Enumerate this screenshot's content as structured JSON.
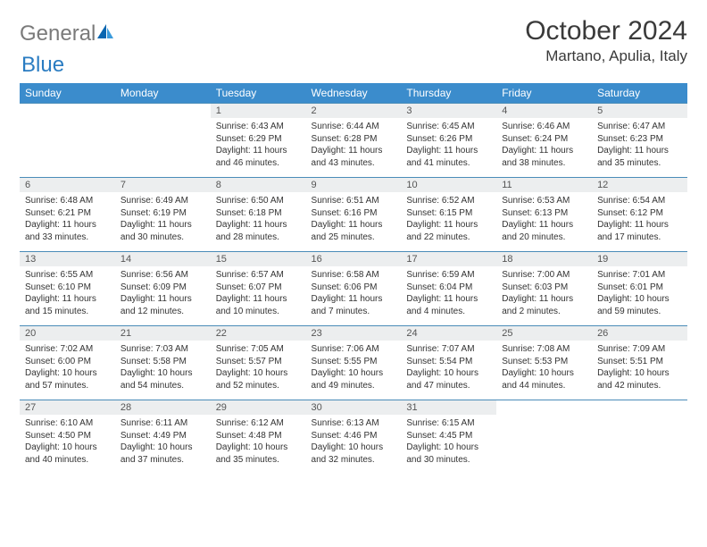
{
  "logo": {
    "text1": "General",
    "text2": "Blue"
  },
  "title": "October 2024",
  "location": "Martano, Apulia, Italy",
  "colors": {
    "header_bg": "#3b8ccc",
    "header_text": "#ffffff",
    "daynum_bg": "#eceeef",
    "row_border": "#4a8cb8",
    "text": "#333333",
    "logo_gray": "#7a7a7a",
    "logo_blue": "#2a7cc2"
  },
  "dayNames": [
    "Sunday",
    "Monday",
    "Tuesday",
    "Wednesday",
    "Thursday",
    "Friday",
    "Saturday"
  ],
  "weeks": [
    [
      {
        "n": "",
        "sr": "",
        "ss": "",
        "dl": ""
      },
      {
        "n": "",
        "sr": "",
        "ss": "",
        "dl": ""
      },
      {
        "n": "1",
        "sr": "Sunrise: 6:43 AM",
        "ss": "Sunset: 6:29 PM",
        "dl": "Daylight: 11 hours and 46 minutes."
      },
      {
        "n": "2",
        "sr": "Sunrise: 6:44 AM",
        "ss": "Sunset: 6:28 PM",
        "dl": "Daylight: 11 hours and 43 minutes."
      },
      {
        "n": "3",
        "sr": "Sunrise: 6:45 AM",
        "ss": "Sunset: 6:26 PM",
        "dl": "Daylight: 11 hours and 41 minutes."
      },
      {
        "n": "4",
        "sr": "Sunrise: 6:46 AM",
        "ss": "Sunset: 6:24 PM",
        "dl": "Daylight: 11 hours and 38 minutes."
      },
      {
        "n": "5",
        "sr": "Sunrise: 6:47 AM",
        "ss": "Sunset: 6:23 PM",
        "dl": "Daylight: 11 hours and 35 minutes."
      }
    ],
    [
      {
        "n": "6",
        "sr": "Sunrise: 6:48 AM",
        "ss": "Sunset: 6:21 PM",
        "dl": "Daylight: 11 hours and 33 minutes."
      },
      {
        "n": "7",
        "sr": "Sunrise: 6:49 AM",
        "ss": "Sunset: 6:19 PM",
        "dl": "Daylight: 11 hours and 30 minutes."
      },
      {
        "n": "8",
        "sr": "Sunrise: 6:50 AM",
        "ss": "Sunset: 6:18 PM",
        "dl": "Daylight: 11 hours and 28 minutes."
      },
      {
        "n": "9",
        "sr": "Sunrise: 6:51 AM",
        "ss": "Sunset: 6:16 PM",
        "dl": "Daylight: 11 hours and 25 minutes."
      },
      {
        "n": "10",
        "sr": "Sunrise: 6:52 AM",
        "ss": "Sunset: 6:15 PM",
        "dl": "Daylight: 11 hours and 22 minutes."
      },
      {
        "n": "11",
        "sr": "Sunrise: 6:53 AM",
        "ss": "Sunset: 6:13 PM",
        "dl": "Daylight: 11 hours and 20 minutes."
      },
      {
        "n": "12",
        "sr": "Sunrise: 6:54 AM",
        "ss": "Sunset: 6:12 PM",
        "dl": "Daylight: 11 hours and 17 minutes."
      }
    ],
    [
      {
        "n": "13",
        "sr": "Sunrise: 6:55 AM",
        "ss": "Sunset: 6:10 PM",
        "dl": "Daylight: 11 hours and 15 minutes."
      },
      {
        "n": "14",
        "sr": "Sunrise: 6:56 AM",
        "ss": "Sunset: 6:09 PM",
        "dl": "Daylight: 11 hours and 12 minutes."
      },
      {
        "n": "15",
        "sr": "Sunrise: 6:57 AM",
        "ss": "Sunset: 6:07 PM",
        "dl": "Daylight: 11 hours and 10 minutes."
      },
      {
        "n": "16",
        "sr": "Sunrise: 6:58 AM",
        "ss": "Sunset: 6:06 PM",
        "dl": "Daylight: 11 hours and 7 minutes."
      },
      {
        "n": "17",
        "sr": "Sunrise: 6:59 AM",
        "ss": "Sunset: 6:04 PM",
        "dl": "Daylight: 11 hours and 4 minutes."
      },
      {
        "n": "18",
        "sr": "Sunrise: 7:00 AM",
        "ss": "Sunset: 6:03 PM",
        "dl": "Daylight: 11 hours and 2 minutes."
      },
      {
        "n": "19",
        "sr": "Sunrise: 7:01 AM",
        "ss": "Sunset: 6:01 PM",
        "dl": "Daylight: 10 hours and 59 minutes."
      }
    ],
    [
      {
        "n": "20",
        "sr": "Sunrise: 7:02 AM",
        "ss": "Sunset: 6:00 PM",
        "dl": "Daylight: 10 hours and 57 minutes."
      },
      {
        "n": "21",
        "sr": "Sunrise: 7:03 AM",
        "ss": "Sunset: 5:58 PM",
        "dl": "Daylight: 10 hours and 54 minutes."
      },
      {
        "n": "22",
        "sr": "Sunrise: 7:05 AM",
        "ss": "Sunset: 5:57 PM",
        "dl": "Daylight: 10 hours and 52 minutes."
      },
      {
        "n": "23",
        "sr": "Sunrise: 7:06 AM",
        "ss": "Sunset: 5:55 PM",
        "dl": "Daylight: 10 hours and 49 minutes."
      },
      {
        "n": "24",
        "sr": "Sunrise: 7:07 AM",
        "ss": "Sunset: 5:54 PM",
        "dl": "Daylight: 10 hours and 47 minutes."
      },
      {
        "n": "25",
        "sr": "Sunrise: 7:08 AM",
        "ss": "Sunset: 5:53 PM",
        "dl": "Daylight: 10 hours and 44 minutes."
      },
      {
        "n": "26",
        "sr": "Sunrise: 7:09 AM",
        "ss": "Sunset: 5:51 PM",
        "dl": "Daylight: 10 hours and 42 minutes."
      }
    ],
    [
      {
        "n": "27",
        "sr": "Sunrise: 6:10 AM",
        "ss": "Sunset: 4:50 PM",
        "dl": "Daylight: 10 hours and 40 minutes."
      },
      {
        "n": "28",
        "sr": "Sunrise: 6:11 AM",
        "ss": "Sunset: 4:49 PM",
        "dl": "Daylight: 10 hours and 37 minutes."
      },
      {
        "n": "29",
        "sr": "Sunrise: 6:12 AM",
        "ss": "Sunset: 4:48 PM",
        "dl": "Daylight: 10 hours and 35 minutes."
      },
      {
        "n": "30",
        "sr": "Sunrise: 6:13 AM",
        "ss": "Sunset: 4:46 PM",
        "dl": "Daylight: 10 hours and 32 minutes."
      },
      {
        "n": "31",
        "sr": "Sunrise: 6:15 AM",
        "ss": "Sunset: 4:45 PM",
        "dl": "Daylight: 10 hours and 30 minutes."
      },
      {
        "n": "",
        "sr": "",
        "ss": "",
        "dl": ""
      },
      {
        "n": "",
        "sr": "",
        "ss": "",
        "dl": ""
      }
    ]
  ]
}
